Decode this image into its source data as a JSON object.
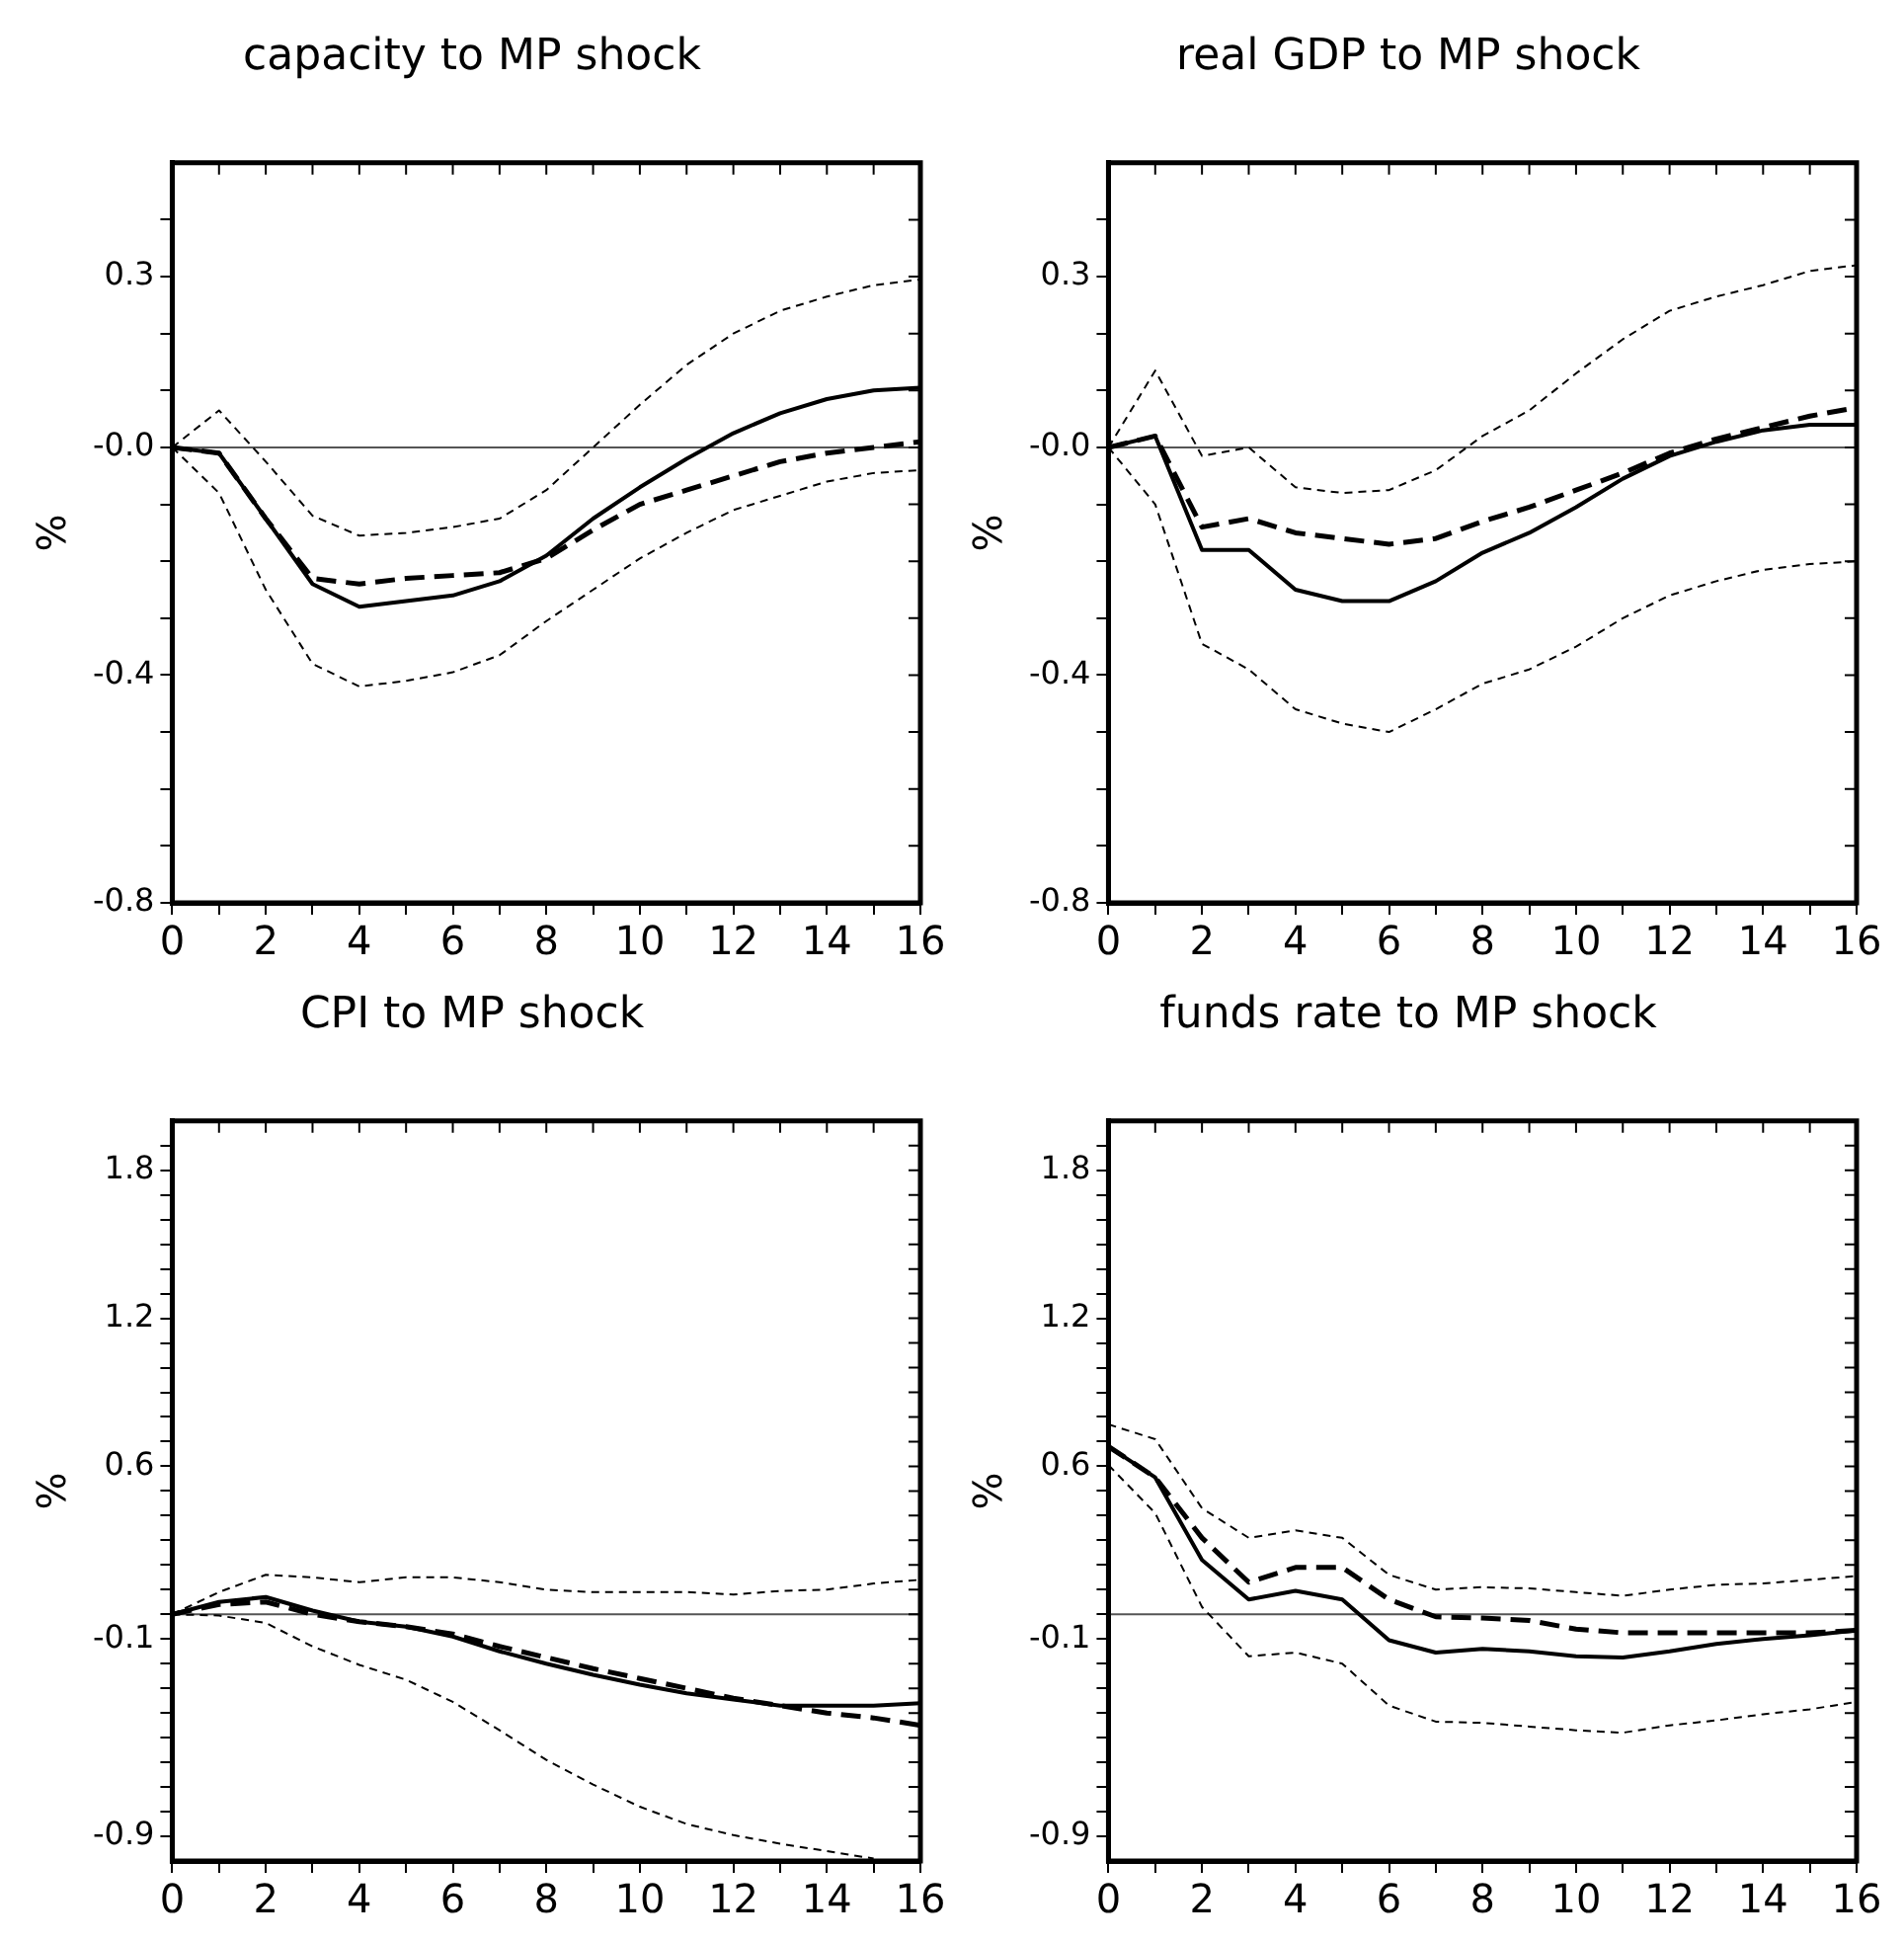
{
  "chart_data": [
    {
      "type": "line",
      "title": "capacity to MP shock",
      "ylabel": "%",
      "x": [
        0,
        1,
        2,
        3,
        4,
        5,
        6,
        7,
        8,
        9,
        10,
        11,
        12,
        13,
        14,
        15,
        16
      ],
      "xlim": [
        0,
        16
      ],
      "xticks": [
        0,
        {
          "value": 1,
          "label": null
        },
        2,
        {
          "value": 3,
          "label": null
        },
        4,
        {
          "value": 5,
          "label": null
        },
        6,
        {
          "value": 7,
          "label": null
        },
        8,
        {
          "value": 9,
          "label": null
        },
        10,
        {
          "value": 11,
          "label": null
        },
        12,
        {
          "value": 13,
          "label": null
        },
        14,
        {
          "value": 15,
          "label": null
        },
        16
      ],
      "ylim": [
        -0.8,
        0.5
      ],
      "yticks": [
        -0.8,
        {
          "value": -0.7,
          "label": null
        },
        {
          "value": -0.6,
          "label": null
        },
        {
          "value": -0.5,
          "label": null
        },
        -0.4,
        {
          "value": -0.3,
          "label": null
        },
        {
          "value": -0.2,
          "label": null
        },
        {
          "value": -0.1,
          "label": null
        },
        {
          "value": 0,
          "label": "-0.0"
        },
        {
          "value": 0.1,
          "label": null
        },
        {
          "value": 0.2,
          "label": null
        },
        0.3,
        {
          "value": 0.4,
          "label": null
        }
      ],
      "grid": false,
      "legend": false,
      "marker": "none",
      "ref_lines": [
        {
          "axis": "y",
          "value": 0,
          "color": "#555555"
        }
      ],
      "series": [
        {
          "color": "#000000",
          "line_style": "solid",
          "values": [
            0,
            -0.01,
            -0.125,
            -0.24,
            -0.28,
            -0.27,
            -0.26,
            -0.235,
            -0.19,
            -0.125,
            -0.07,
            -0.02,
            0.025,
            0.06,
            0.085,
            0.1,
            0.105
          ]
        },
        {
          "color": "#000000",
          "line_style": "dashed",
          "values": [
            0,
            -0.01,
            -0.125,
            -0.23,
            -0.24,
            -0.23,
            -0.225,
            -0.22,
            -0.195,
            -0.145,
            -0.1,
            -0.075,
            -0.05,
            -0.025,
            -0.01,
            0,
            0.01
          ]
        },
        {
          "color": "#000000",
          "line_style": "dotted",
          "values": [
            0,
            0.065,
            -0.025,
            -0.12,
            -0.155,
            -0.15,
            -0.14,
            -0.125,
            -0.075,
            0,
            0.075,
            0.145,
            0.2,
            0.24,
            0.265,
            0.285,
            0.295
          ]
        },
        {
          "color": "#000000",
          "line_style": "dotted",
          "values": [
            0,
            -0.08,
            -0.25,
            -0.38,
            -0.42,
            -0.41,
            -0.395,
            -0.365,
            -0.305,
            -0.25,
            -0.195,
            -0.15,
            -0.11,
            -0.085,
            -0.06,
            -0.045,
            -0.04
          ]
        }
      ]
    },
    {
      "type": "line",
      "title": "real GDP to MP shock",
      "ylabel": "%",
      "x": [
        0,
        1,
        2,
        3,
        4,
        5,
        6,
        7,
        8,
        9,
        10,
        11,
        12,
        13,
        14,
        15,
        16
      ],
      "xlim": [
        0,
        16
      ],
      "xticks": [
        0,
        {
          "value": 1,
          "label": null
        },
        2,
        {
          "value": 3,
          "label": null
        },
        4,
        {
          "value": 5,
          "label": null
        },
        6,
        {
          "value": 7,
          "label": null
        },
        8,
        {
          "value": 9,
          "label": null
        },
        10,
        {
          "value": 11,
          "label": null
        },
        12,
        {
          "value": 13,
          "label": null
        },
        14,
        {
          "value": 15,
          "label": null
        },
        16
      ],
      "ylim": [
        -0.8,
        0.5
      ],
      "yticks": [
        -0.8,
        {
          "value": -0.7,
          "label": null
        },
        {
          "value": -0.6,
          "label": null
        },
        {
          "value": -0.5,
          "label": null
        },
        -0.4,
        {
          "value": -0.3,
          "label": null
        },
        {
          "value": -0.2,
          "label": null
        },
        {
          "value": -0.1,
          "label": null
        },
        {
          "value": 0,
          "label": "-0.0"
        },
        {
          "value": 0.1,
          "label": null
        },
        {
          "value": 0.2,
          "label": null
        },
        0.3,
        {
          "value": 0.4,
          "label": null
        }
      ],
      "grid": false,
      "legend": false,
      "marker": "none",
      "ref_lines": [
        {
          "axis": "y",
          "value": 0,
          "color": "#555555"
        }
      ],
      "series": [
        {
          "color": "#000000",
          "line_style": "solid",
          "values": [
            0,
            0.02,
            -0.18,
            -0.18,
            -0.25,
            -0.27,
            -0.27,
            -0.235,
            -0.185,
            -0.15,
            -0.105,
            -0.055,
            -0.015,
            0.01,
            0.03,
            0.04,
            0.04
          ]
        },
        {
          "color": "#000000",
          "line_style": "dashed",
          "values": [
            0,
            0.02,
            -0.14,
            -0.125,
            -0.15,
            -0.16,
            -0.17,
            -0.16,
            -0.13,
            -0.105,
            -0.075,
            -0.045,
            -0.01,
            0.015,
            0.035,
            0.055,
            0.07
          ]
        },
        {
          "color": "#000000",
          "line_style": "dotted",
          "values": [
            0,
            0.135,
            -0.015,
            0,
            -0.07,
            -0.08,
            -0.075,
            -0.04,
            0.02,
            0.065,
            0.13,
            0.19,
            0.24,
            0.265,
            0.285,
            0.31,
            0.32
          ]
        },
        {
          "color": "#000000",
          "line_style": "dotted",
          "values": [
            0,
            -0.1,
            -0.345,
            -0.39,
            -0.46,
            -0.485,
            -0.5,
            -0.46,
            -0.415,
            -0.39,
            -0.35,
            -0.3,
            -0.26,
            -0.235,
            -0.215,
            -0.205,
            -0.2
          ]
        }
      ]
    },
    {
      "type": "line",
      "title": "CPI to MP shock",
      "ylabel": "%",
      "x": [
        0,
        1,
        2,
        3,
        4,
        5,
        6,
        7,
        8,
        9,
        10,
        11,
        12,
        13,
        14,
        15,
        16
      ],
      "xlim": [
        0,
        16
      ],
      "xticks": [
        0,
        {
          "value": 1,
          "label": null
        },
        2,
        {
          "value": 3,
          "label": null
        },
        4,
        {
          "value": 5,
          "label": null
        },
        6,
        {
          "value": 7,
          "label": null
        },
        8,
        {
          "value": 9,
          "label": null
        },
        10,
        {
          "value": 11,
          "label": null
        },
        12,
        {
          "value": 13,
          "label": null
        },
        14,
        {
          "value": 15,
          "label": null
        },
        16
      ],
      "ylim": [
        -1.0,
        2.0
      ],
      "yticks": [
        -0.9,
        {
          "value": -0.8,
          "label": null
        },
        {
          "value": -0.7,
          "label": null
        },
        {
          "value": -0.6,
          "label": null
        },
        {
          "value": -0.5,
          "label": null
        },
        {
          "value": -0.4,
          "label": null
        },
        {
          "value": -0.3,
          "label": null
        },
        {
          "value": -0.2,
          "label": null
        },
        -0.1,
        {
          "value": 0,
          "label": null
        },
        {
          "value": 0.1,
          "label": null
        },
        {
          "value": 0.2,
          "label": null
        },
        {
          "value": 0.3,
          "label": null
        },
        {
          "value": 0.4,
          "label": null
        },
        {
          "value": 0.5,
          "label": null
        },
        0.6,
        {
          "value": 0.7,
          "label": null
        },
        {
          "value": 0.8,
          "label": null
        },
        {
          "value": 0.9,
          "label": null
        },
        {
          "value": 1.0,
          "label": null
        },
        {
          "value": 1.1,
          "label": null
        },
        1.2,
        {
          "value": 1.3,
          "label": null
        },
        {
          "value": 1.4,
          "label": null
        },
        {
          "value": 1.5,
          "label": null
        },
        {
          "value": 1.6,
          "label": null
        },
        {
          "value": 1.7,
          "label": null
        },
        1.8,
        {
          "value": 1.9,
          "label": null
        }
      ],
      "grid": false,
      "legend": false,
      "marker": "none",
      "ref_lines": [
        {
          "axis": "y",
          "value": 0,
          "color": "#555555"
        }
      ],
      "series": [
        {
          "color": "#000000",
          "line_style": "solid",
          "values": [
            0,
            0.05,
            0.07,
            0.015,
            -0.03,
            -0.05,
            -0.09,
            -0.15,
            -0.2,
            -0.245,
            -0.285,
            -0.32,
            -0.345,
            -0.37,
            -0.37,
            -0.37,
            -0.36
          ]
        },
        {
          "color": "#000000",
          "line_style": "dashed",
          "values": [
            0,
            0.04,
            0.05,
            0,
            -0.03,
            -0.05,
            -0.08,
            -0.13,
            -0.175,
            -0.22,
            -0.26,
            -0.3,
            -0.34,
            -0.37,
            -0.4,
            -0.42,
            -0.45
          ]
        },
        {
          "color": "#000000",
          "line_style": "dotted",
          "values": [
            0,
            0.09,
            0.16,
            0.15,
            0.13,
            0.15,
            0.15,
            0.13,
            0.1,
            0.09,
            0.09,
            0.09,
            0.08,
            0.095,
            0.1,
            0.125,
            0.14
          ]
        },
        {
          "color": "#000000",
          "line_style": "dotted",
          "values": [
            0,
            -0.005,
            -0.035,
            -0.13,
            -0.205,
            -0.265,
            -0.355,
            -0.47,
            -0.59,
            -0.69,
            -0.78,
            -0.85,
            -0.895,
            -0.93,
            -0.96,
            -0.99,
            null
          ]
        }
      ]
    },
    {
      "type": "line",
      "title": "funds rate to MP shock",
      "ylabel": "%",
      "x": [
        0,
        1,
        2,
        3,
        4,
        5,
        6,
        7,
        8,
        9,
        10,
        11,
        12,
        13,
        14,
        15,
        16
      ],
      "xlim": [
        0,
        16
      ],
      "xticks": [
        0,
        {
          "value": 1,
          "label": null
        },
        2,
        {
          "value": 3,
          "label": null
        },
        4,
        {
          "value": 5,
          "label": null
        },
        6,
        {
          "value": 7,
          "label": null
        },
        8,
        {
          "value": 9,
          "label": null
        },
        10,
        {
          "value": 11,
          "label": null
        },
        12,
        {
          "value": 13,
          "label": null
        },
        14,
        {
          "value": 15,
          "label": null
        },
        16
      ],
      "ylim": [
        -1.0,
        2.0
      ],
      "yticks": [
        -0.9,
        {
          "value": -0.8,
          "label": null
        },
        {
          "value": -0.7,
          "label": null
        },
        {
          "value": -0.6,
          "label": null
        },
        {
          "value": -0.5,
          "label": null
        },
        {
          "value": -0.4,
          "label": null
        },
        {
          "value": -0.3,
          "label": null
        },
        {
          "value": -0.2,
          "label": null
        },
        -0.1,
        {
          "value": 0,
          "label": null
        },
        {
          "value": 0.1,
          "label": null
        },
        {
          "value": 0.2,
          "label": null
        },
        {
          "value": 0.3,
          "label": null
        },
        {
          "value": 0.4,
          "label": null
        },
        {
          "value": 0.5,
          "label": null
        },
        0.6,
        {
          "value": 0.7,
          "label": null
        },
        {
          "value": 0.8,
          "label": null
        },
        {
          "value": 0.9,
          "label": null
        },
        {
          "value": 1.0,
          "label": null
        },
        {
          "value": 1.1,
          "label": null
        },
        1.2,
        {
          "value": 1.3,
          "label": null
        },
        {
          "value": 1.4,
          "label": null
        },
        {
          "value": 1.5,
          "label": null
        },
        {
          "value": 1.6,
          "label": null
        },
        {
          "value": 1.7,
          "label": null
        },
        1.8,
        {
          "value": 1.9,
          "label": null
        }
      ],
      "grid": false,
      "legend": false,
      "marker": "none",
      "ref_lines": [
        {
          "axis": "y",
          "value": 0,
          "color": "#555555"
        }
      ],
      "series": [
        {
          "color": "#000000",
          "line_style": "solid",
          "values": [
            0.68,
            0.555,
            0.22,
            0.06,
            0.095,
            0.06,
            -0.105,
            -0.155,
            -0.14,
            -0.15,
            -0.17,
            -0.175,
            -0.15,
            -0.12,
            -0.1,
            -0.085,
            -0.065
          ]
        },
        {
          "color": "#000000",
          "line_style": "dashed",
          "values": [
            0.68,
            0.555,
            0.31,
            0.13,
            0.19,
            0.19,
            0.06,
            -0.01,
            -0.015,
            -0.025,
            -0.06,
            -0.075,
            -0.075,
            -0.075,
            -0.075,
            -0.075,
            -0.065
          ]
        },
        {
          "color": "#000000",
          "line_style": "dotted",
          "values": [
            0.77,
            0.71,
            0.43,
            0.31,
            0.34,
            0.31,
            0.16,
            0.1,
            0.11,
            0.105,
            0.09,
            0.075,
            0.1,
            0.12,
            0.125,
            0.14,
            0.155
          ]
        },
        {
          "color": "#000000",
          "line_style": "dotted",
          "values": [
            0.605,
            0.41,
            0.03,
            -0.17,
            -0.155,
            -0.2,
            -0.37,
            -0.435,
            -0.44,
            -0.455,
            -0.47,
            -0.48,
            -0.45,
            -0.43,
            -0.405,
            -0.385,
            -0.355
          ]
        }
      ]
    }
  ]
}
